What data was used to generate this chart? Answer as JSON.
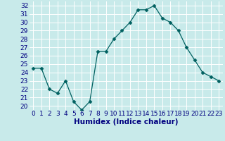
{
  "x": [
    0,
    1,
    2,
    3,
    4,
    5,
    6,
    7,
    8,
    9,
    10,
    11,
    12,
    13,
    14,
    15,
    16,
    17,
    18,
    19,
    20,
    21,
    22,
    23
  ],
  "y": [
    24.5,
    24.5,
    22,
    21.5,
    23,
    20.5,
    19.5,
    20.5,
    26.5,
    26.5,
    28,
    29,
    30,
    31.5,
    31.5,
    32,
    30.5,
    30,
    29,
    27,
    25.5,
    24,
    23.5,
    23
  ],
  "line_color": "#006060",
  "marker": "D",
  "marker_size": 2.5,
  "bg_color": "#c8eaea",
  "grid_color": "#ffffff",
  "xlabel": "Humidex (Indice chaleur)",
  "ylim": [
    19.5,
    32.5
  ],
  "xlim": [
    -0.5,
    23.5
  ],
  "yticks": [
    20,
    21,
    22,
    23,
    24,
    25,
    26,
    27,
    28,
    29,
    30,
    31,
    32
  ],
  "xticks": [
    0,
    1,
    2,
    3,
    4,
    5,
    6,
    7,
    8,
    9,
    10,
    11,
    12,
    13,
    14,
    15,
    16,
    17,
    18,
    19,
    20,
    21,
    22,
    23
  ],
  "xtick_labels": [
    "0",
    "1",
    "2",
    "3",
    "4",
    "5",
    "6",
    "7",
    "8",
    "9",
    "10",
    "11",
    "12",
    "13",
    "14",
    "15",
    "16",
    "17",
    "18",
    "19",
    "20",
    "21",
    "22",
    "23"
  ],
  "tick_fontsize": 6.5,
  "xlabel_fontsize": 7.5,
  "label_color": "#000080"
}
